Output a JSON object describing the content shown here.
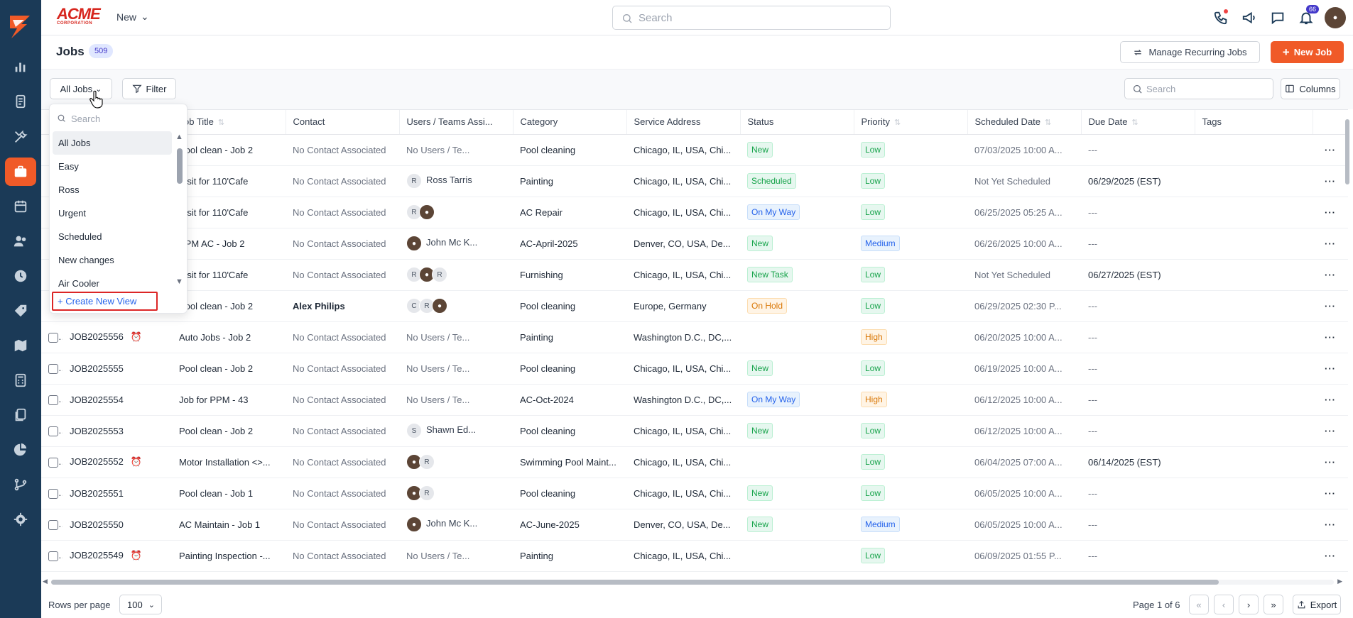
{
  "brand": {
    "name": "ACME",
    "sub": "CORPORATION"
  },
  "topbar": {
    "new_label": "New",
    "search_placeholder": "Search",
    "notif_count": "66"
  },
  "page": {
    "title": "Jobs",
    "count": "509",
    "recurring_label": "Manage Recurring Jobs",
    "new_job_label": "New Job"
  },
  "toolbar": {
    "views_label": "All Jobs",
    "filter_label": "Filter",
    "search_placeholder": "Search",
    "columns_label": "Columns"
  },
  "dropdown": {
    "search_placeholder": "Search",
    "items": [
      "All Jobs",
      "Easy",
      "Ross",
      "Urgent",
      "Scheduled",
      "New changes",
      "Air Cooler"
    ],
    "create_label": "+ Create New View"
  },
  "columns": [
    "",
    "Job Title",
    "Contact",
    "Users / Teams Assi...",
    "Category",
    "Service Address",
    "Status",
    "Priority",
    "Scheduled Date",
    "Due Date",
    "Tags",
    ""
  ],
  "rows": [
    {
      "id": "",
      "alarm": false,
      "title": "Pool clean - Job 2",
      "contact": "No Contact Associated",
      "users": {
        "type": "none",
        "text": "No Users / Te..."
      },
      "category": "Pool cleaning",
      "address": "Chicago, IL, USA, Chi...",
      "status": "New",
      "status_class": "st-new",
      "priority": "Low",
      "priority_class": "pr-low",
      "sched": "07/03/2025 10:00 A...",
      "due": "---"
    },
    {
      "id": "",
      "alarm": false,
      "title": "Visit for 110'Cafe",
      "contact": "No Contact Associated",
      "users": {
        "type": "named",
        "avatars": [
          "R"
        ],
        "name": "Ross Tarris"
      },
      "category": "Painting",
      "address": "Chicago, IL, USA, Chi...",
      "status": "Scheduled",
      "status_class": "st-scheduled",
      "priority": "Low",
      "priority_class": "pr-low",
      "sched": "Not Yet Scheduled",
      "due": "06/29/2025 (EST)"
    },
    {
      "id": "",
      "alarm": false,
      "title": "Visit for 110'Cafe",
      "contact": "No Contact Associated",
      "users": {
        "type": "avatars",
        "avatars": [
          "R",
          "photo"
        ]
      },
      "category": "AC Repair",
      "address": "Chicago, IL, USA, Chi...",
      "status": "On My Way",
      "status_class": "st-onmyway",
      "priority": "Low",
      "priority_class": "pr-low",
      "sched": "06/25/2025 05:25 A...",
      "due": "---"
    },
    {
      "id": "",
      "alarm": false,
      "title": "PPM AC - Job 2",
      "contact": "No Contact Associated",
      "users": {
        "type": "named",
        "avatars": [
          "photo"
        ],
        "name": "John Mc K..."
      },
      "category": "AC-April-2025",
      "address": "Denver, CO, USA, De...",
      "status": "New",
      "status_class": "st-new",
      "priority": "Medium",
      "priority_class": "pr-medium",
      "sched": "06/26/2025 10:00 A...",
      "due": "---"
    },
    {
      "id": "",
      "alarm": false,
      "title": "Visit for 110'Cafe",
      "contact": "No Contact Associated",
      "users": {
        "type": "avatars",
        "avatars": [
          "R",
          "photo",
          "R"
        ]
      },
      "category": "Furnishing",
      "address": "Chicago, IL, USA, Chi...",
      "status": "New Task",
      "status_class": "st-newtask",
      "priority": "Low",
      "priority_class": "pr-low",
      "sched": "Not Yet Scheduled",
      "due": "06/27/2025 (EST)"
    },
    {
      "id": "",
      "alarm": false,
      "title": "Pool clean - Job 2",
      "contact": "Alex Philips",
      "contact_bold": true,
      "users": {
        "type": "avatars",
        "avatars": [
          "C",
          "R",
          "photo"
        ]
      },
      "category": "Pool cleaning",
      "address": "Europe, Germany",
      "status": "On Hold",
      "status_class": "st-onhold",
      "priority": "Low",
      "priority_class": "pr-low",
      "sched": "06/29/2025 02:30 P...",
      "due": "---"
    },
    {
      "id": "JOB2025556",
      "alarm": true,
      "title": "Auto Jobs - Job 2",
      "contact": "No Contact Associated",
      "users": {
        "type": "none",
        "text": "No Users / Te..."
      },
      "category": "Painting",
      "address": "Washington D.C., DC,...",
      "status": "",
      "status_class": "",
      "priority": "High",
      "priority_class": "pr-high",
      "sched": "06/20/2025 10:00 A...",
      "due": "---"
    },
    {
      "id": "JOB2025555",
      "alarm": false,
      "title": "Pool clean - Job 2",
      "contact": "No Contact Associated",
      "users": {
        "type": "none",
        "text": "No Users / Te..."
      },
      "category": "Pool cleaning",
      "address": "Chicago, IL, USA, Chi...",
      "status": "New",
      "status_class": "st-new",
      "priority": "Low",
      "priority_class": "pr-low",
      "sched": "06/19/2025 10:00 A...",
      "due": "---"
    },
    {
      "id": "JOB2025554",
      "alarm": false,
      "title": "Job for PPM - 43",
      "contact": "No Contact Associated",
      "users": {
        "type": "none",
        "text": "No Users / Te..."
      },
      "category": "AC-Oct-2024",
      "address": "Washington D.C., DC,...",
      "status": "On My Way",
      "status_class": "st-onmyway",
      "priority": "High",
      "priority_class": "pr-high",
      "sched": "06/12/2025 10:00 A...",
      "due": "---"
    },
    {
      "id": "JOB2025553",
      "alarm": false,
      "title": "Pool clean - Job 2",
      "contact": "No Contact Associated",
      "users": {
        "type": "named",
        "avatars": [
          "S"
        ],
        "name": "Shawn Ed..."
      },
      "category": "Pool cleaning",
      "address": "Chicago, IL, USA, Chi...",
      "status": "New",
      "status_class": "st-new",
      "priority": "Low",
      "priority_class": "pr-low",
      "sched": "06/12/2025 10:00 A...",
      "due": "---"
    },
    {
      "id": "JOB2025552",
      "alarm": true,
      "title": "Motor Installation <>...",
      "contact": "No Contact Associated",
      "users": {
        "type": "avatars",
        "avatars": [
          "photo",
          "R"
        ]
      },
      "category": "Swimming Pool Maint...",
      "address": "Chicago, IL, USA, Chi...",
      "status": "",
      "status_class": "",
      "priority": "Low",
      "priority_class": "pr-low",
      "sched": "06/04/2025 07:00 A...",
      "due": "06/14/2025 (EST)"
    },
    {
      "id": "JOB2025551",
      "alarm": false,
      "title": "Pool clean - Job 1",
      "contact": "No Contact Associated",
      "users": {
        "type": "avatars",
        "avatars": [
          "photo",
          "R"
        ]
      },
      "category": "Pool cleaning",
      "address": "Chicago, IL, USA, Chi...",
      "status": "New",
      "status_class": "st-new",
      "priority": "Low",
      "priority_class": "pr-low",
      "sched": "06/05/2025 10:00 A...",
      "due": "---"
    },
    {
      "id": "JOB2025550",
      "alarm": false,
      "title": "AC Maintain - Job 1",
      "contact": "No Contact Associated",
      "users": {
        "type": "named",
        "avatars": [
          "photo"
        ],
        "name": "John Mc K..."
      },
      "category": "AC-June-2025",
      "address": "Denver, CO, USA, De...",
      "status": "New",
      "status_class": "st-new",
      "priority": "Medium",
      "priority_class": "pr-medium",
      "sched": "06/05/2025 10:00 A...",
      "due": "---"
    },
    {
      "id": "JOB2025549",
      "alarm": true,
      "title": "Painting Inspection -...",
      "contact": "No Contact Associated",
      "users": {
        "type": "none",
        "text": "No Users / Te..."
      },
      "category": "Painting",
      "address": "Chicago, IL, USA, Chi...",
      "status": "",
      "status_class": "",
      "priority": "Low",
      "priority_class": "pr-low",
      "sched": "06/09/2025 01:55 P...",
      "due": "---"
    }
  ],
  "footer": {
    "rows_label": "Rows per page",
    "rows_value": "100",
    "page_info": "Page 1 of 6",
    "export_label": "Export"
  }
}
